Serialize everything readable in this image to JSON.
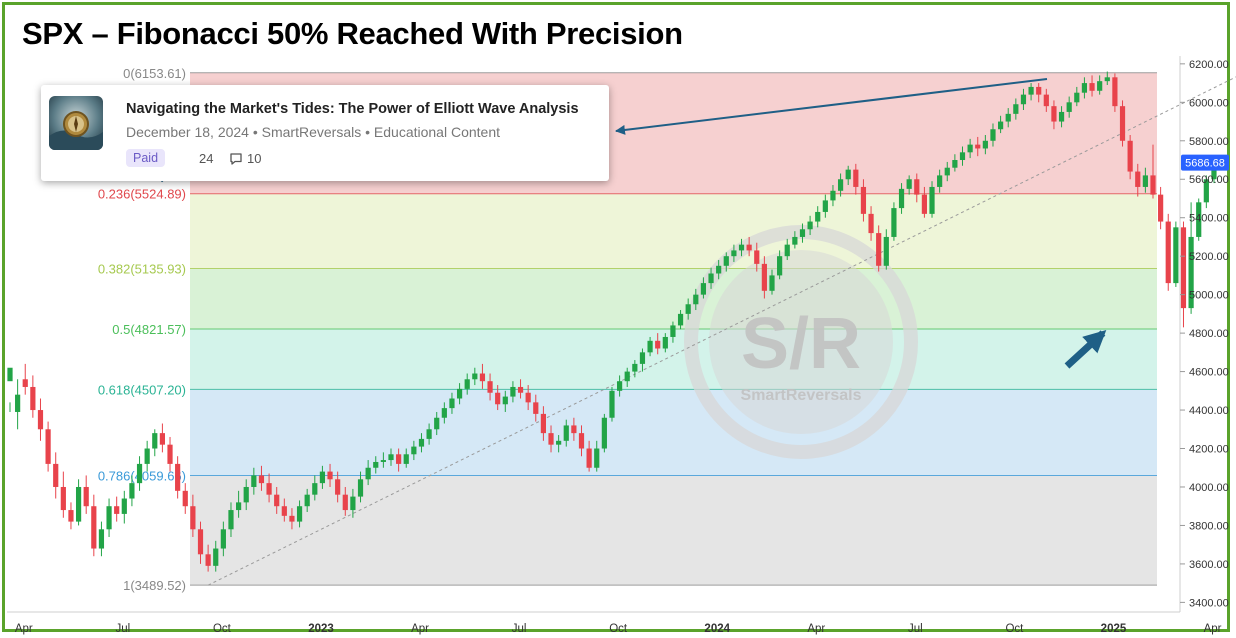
{
  "title": "SPX – Fibonacci 50% Reached With Precision",
  "card": {
    "title": "Navigating the Market's Tides: The Power of Elliott Wave Analysis",
    "meta": "December 18, 2024 • SmartReversals • Educational Content",
    "badge": "Paid",
    "likes": "24",
    "comments": "10"
  },
  "watermark": {
    "mark": "S/R",
    "text": "SmartReversals"
  },
  "colors": {
    "up": "#22a447",
    "down": "#e8434b",
    "frame": "#5aa32b",
    "arrow": "#1f5f86"
  },
  "chart_data": {
    "type": "candlestick",
    "y_axis": {
      "min": 3350,
      "max": 6220,
      "ticks": [
        "3400.00",
        "3600.00",
        "3800.00",
        "4000.00",
        "4200.00",
        "4400.00",
        "4600.00",
        "4800.00",
        "5000.00",
        "5200.00",
        "5400.00",
        "5600.00",
        "5800.00",
        "6000.00",
        "6200.00"
      ],
      "last_price": "5686.68"
    },
    "x_axis": {
      "labels": [
        {
          "t": "Apr",
          "pos": 0.5
        },
        {
          "t": "Jul",
          "pos": 13.5
        },
        {
          "t": "Oct",
          "pos": 26.5
        },
        {
          "t": "2023",
          "pos": 39.5
        },
        {
          "t": "Apr",
          "pos": 52.5
        },
        {
          "t": "Jul",
          "pos": 65.5
        },
        {
          "t": "Oct",
          "pos": 78.5
        },
        {
          "t": "2024",
          "pos": 91.5
        },
        {
          "t": "Apr",
          "pos": 104.5
        },
        {
          "t": "Jul",
          "pos": 117.5
        },
        {
          "t": "Oct",
          "pos": 130.5
        },
        {
          "t": "2025",
          "pos": 143.5
        },
        {
          "t": "Apr",
          "pos": 156.5
        }
      ]
    },
    "fib_levels": [
      {
        "label": "0(6153.61)",
        "value": 6153.61,
        "color": "#888888"
      },
      {
        "label": "0.236(5524.89)",
        "value": 5524.89,
        "color": "#e0474c"
      },
      {
        "label": "0.382(5135.93)",
        "value": 5135.93,
        "color": "#a6c94f"
      },
      {
        "label": "0.5(4821.57)",
        "value": 4821.57,
        "color": "#4bbf5a"
      },
      {
        "label": "0.618(4507.20)",
        "value": 4507.2,
        "color": "#2ab394"
      },
      {
        "label": "0.786(4059.66)",
        "value": 4059.66,
        "color": "#3a9ad8"
      },
      {
        "label": "1(3489.52)",
        "value": 3489.52,
        "color": "#888888"
      }
    ],
    "fib_zone_colors": [
      "#f6d0d0",
      "#eef5d8",
      "#d9f2d6",
      "#d3f3ea",
      "#d5e8f6",
      "#e5e5e5"
    ],
    "trend_line": {
      "from": {
        "bar": 26,
        "price": 3489.52
      },
      "to": {
        "bar": 162,
        "price": 6153.61
      }
    },
    "candles": [
      [
        4550,
        4620,
        4440,
        4390
      ],
      [
        4390,
        4480,
        4560,
        4300
      ],
      [
        4560,
        4520,
        4640,
        4480
      ],
      [
        4520,
        4400,
        4580,
        4360
      ],
      [
        4400,
        4300,
        4460,
        4240
      ],
      [
        4300,
        4120,
        4340,
        4080
      ],
      [
        4120,
        4000,
        4180,
        3940
      ],
      [
        4000,
        3880,
        4080,
        3840
      ],
      [
        3880,
        3820,
        3920,
        3780
      ],
      [
        3820,
        4000,
        4040,
        3800
      ],
      [
        4000,
        3900,
        4060,
        3860
      ],
      [
        3900,
        3680,
        3960,
        3640
      ],
      [
        3680,
        3780,
        3820,
        3640
      ],
      [
        3780,
        3900,
        3940,
        3740
      ],
      [
        3900,
        3860,
        3950,
        3820
      ],
      [
        3860,
        3940,
        3980,
        3810
      ],
      [
        3940,
        4020,
        4060,
        3900
      ],
      [
        4020,
        4120,
        4160,
        3980
      ],
      [
        4120,
        4200,
        4240,
        4080
      ],
      [
        4200,
        4280,
        4300,
        4160
      ],
      [
        4280,
        4220,
        4330,
        4180
      ],
      [
        4220,
        4120,
        4260,
        4080
      ],
      [
        4120,
        3980,
        4160,
        3940
      ],
      [
        3980,
        3900,
        4020,
        3860
      ],
      [
        3900,
        3780,
        3960,
        3740
      ],
      [
        3780,
        3650,
        3820,
        3600
      ],
      [
        3650,
        3590,
        3700,
        3560
      ],
      [
        3590,
        3680,
        3720,
        3560
      ],
      [
        3680,
        3780,
        3820,
        3640
      ],
      [
        3780,
        3880,
        3920,
        3740
      ],
      [
        3880,
        3920,
        3980,
        3840
      ],
      [
        3920,
        4000,
        4040,
        3880
      ],
      [
        4000,
        4060,
        4100,
        3960
      ],
      [
        4060,
        4020,
        4110,
        3980
      ],
      [
        4020,
        3960,
        4070,
        3920
      ],
      [
        3960,
        3900,
        4000,
        3860
      ],
      [
        3900,
        3850,
        3940,
        3820
      ],
      [
        3850,
        3820,
        3890,
        3780
      ],
      [
        3820,
        3900,
        3930,
        3790
      ],
      [
        3900,
        3960,
        3990,
        3870
      ],
      [
        3960,
        4020,
        4060,
        3930
      ],
      [
        4020,
        4080,
        4110,
        3990
      ],
      [
        4080,
        4040,
        4120,
        4000
      ],
      [
        4040,
        3960,
        4080,
        3920
      ],
      [
        3960,
        3880,
        4000,
        3850
      ],
      [
        3880,
        3950,
        3990,
        3840
      ],
      [
        3950,
        4040,
        4080,
        3920
      ],
      [
        4040,
        4100,
        4140,
        4010
      ],
      [
        4100,
        4130,
        4160,
        4070
      ],
      [
        4130,
        4140,
        4180,
        4100
      ],
      [
        4140,
        4170,
        4200,
        4110
      ],
      [
        4170,
        4120,
        4200,
        4080
      ],
      [
        4120,
        4170,
        4200,
        4100
      ],
      [
        4170,
        4210,
        4240,
        4140
      ],
      [
        4210,
        4250,
        4280,
        4180
      ],
      [
        4250,
        4300,
        4330,
        4220
      ],
      [
        4300,
        4360,
        4390,
        4270
      ],
      [
        4360,
        4410,
        4440,
        4330
      ],
      [
        4410,
        4460,
        4490,
        4380
      ],
      [
        4460,
        4510,
        4540,
        4430
      ],
      [
        4510,
        4560,
        4590,
        4480
      ],
      [
        4560,
        4590,
        4620,
        4530
      ],
      [
        4590,
        4550,
        4640,
        4510
      ],
      [
        4550,
        4490,
        4590,
        4450
      ],
      [
        4490,
        4430,
        4530,
        4400
      ],
      [
        4430,
        4470,
        4500,
        4390
      ],
      [
        4470,
        4520,
        4550,
        4440
      ],
      [
        4520,
        4490,
        4560,
        4460
      ],
      [
        4490,
        4440,
        4530,
        4400
      ],
      [
        4440,
        4380,
        4480,
        4340
      ],
      [
        4380,
        4280,
        4420,
        4240
      ],
      [
        4280,
        4220,
        4320,
        4180
      ],
      [
        4220,
        4240,
        4270,
        4180
      ],
      [
        4240,
        4320,
        4350,
        4210
      ],
      [
        4320,
        4280,
        4360,
        4240
      ],
      [
        4280,
        4200,
        4320,
        4160
      ],
      [
        4200,
        4100,
        4240,
        4080
      ],
      [
        4100,
        4200,
        4240,
        4080
      ],
      [
        4200,
        4360,
        4380,
        4180
      ],
      [
        4360,
        4500,
        4520,
        4340
      ],
      [
        4500,
        4550,
        4580,
        4470
      ],
      [
        4550,
        4600,
        4620,
        4520
      ],
      [
        4600,
        4640,
        4660,
        4570
      ],
      [
        4640,
        4700,
        4720,
        4600
      ],
      [
        4700,
        4760,
        4780,
        4680
      ],
      [
        4760,
        4720,
        4800,
        4690
      ],
      [
        4720,
        4780,
        4800,
        4700
      ],
      [
        4780,
        4840,
        4860,
        4750
      ],
      [
        4840,
        4900,
        4920,
        4820
      ],
      [
        4900,
        4950,
        4980,
        4870
      ],
      [
        4950,
        5000,
        5030,
        4920
      ],
      [
        5000,
        5060,
        5090,
        4980
      ],
      [
        5060,
        5110,
        5140,
        5030
      ],
      [
        5110,
        5150,
        5180,
        5080
      ],
      [
        5150,
        5200,
        5220,
        5120
      ],
      [
        5200,
        5230,
        5260,
        5170
      ],
      [
        5230,
        5260,
        5290,
        5200
      ],
      [
        5260,
        5230,
        5300,
        5200
      ],
      [
        5230,
        5160,
        5270,
        5120
      ],
      [
        5160,
        5020,
        5200,
        4980
      ],
      [
        5020,
        5100,
        5130,
        5000
      ],
      [
        5100,
        5200,
        5230,
        5080
      ],
      [
        5200,
        5260,
        5290,
        5180
      ],
      [
        5260,
        5300,
        5330,
        5240
      ],
      [
        5300,
        5340,
        5370,
        5270
      ],
      [
        5340,
        5380,
        5410,
        5310
      ],
      [
        5380,
        5430,
        5460,
        5350
      ],
      [
        5430,
        5490,
        5520,
        5400
      ],
      [
        5490,
        5540,
        5570,
        5460
      ],
      [
        5540,
        5600,
        5630,
        5510
      ],
      [
        5600,
        5650,
        5670,
        5570
      ],
      [
        5650,
        5560,
        5680,
        5520
      ],
      [
        5560,
        5420,
        5600,
        5380
      ],
      [
        5420,
        5320,
        5460,
        5280
      ],
      [
        5320,
        5150,
        5360,
        5120
      ],
      [
        5150,
        5300,
        5340,
        5130
      ],
      [
        5300,
        5450,
        5480,
        5280
      ],
      [
        5450,
        5550,
        5580,
        5420
      ],
      [
        5550,
        5600,
        5620,
        5520
      ],
      [
        5600,
        5520,
        5630,
        5480
      ],
      [
        5520,
        5420,
        5560,
        5400
      ],
      [
        5420,
        5560,
        5590,
        5400
      ],
      [
        5560,
        5620,
        5650,
        5530
      ],
      [
        5620,
        5660,
        5690,
        5590
      ],
      [
        5660,
        5700,
        5730,
        5640
      ],
      [
        5700,
        5740,
        5770,
        5670
      ],
      [
        5740,
        5780,
        5810,
        5710
      ],
      [
        5780,
        5760,
        5820,
        5720
      ],
      [
        5760,
        5800,
        5830,
        5730
      ],
      [
        5800,
        5860,
        5890,
        5770
      ],
      [
        5860,
        5900,
        5930,
        5840
      ],
      [
        5900,
        5940,
        5970,
        5870
      ],
      [
        5940,
        5990,
        6020,
        5910
      ],
      [
        5990,
        6040,
        6070,
        5960
      ],
      [
        6040,
        6080,
        6100,
        6010
      ],
      [
        6080,
        6040,
        6100,
        6000
      ],
      [
        6040,
        5980,
        6070,
        5950
      ],
      [
        5980,
        5900,
        6010,
        5860
      ],
      [
        5900,
        5950,
        5980,
        5870
      ],
      [
        5950,
        6000,
        6030,
        5920
      ],
      [
        6000,
        6050,
        6080,
        5980
      ],
      [
        6050,
        6100,
        6130,
        6020
      ],
      [
        6100,
        6060,
        6140,
        6030
      ],
      [
        6060,
        6110,
        6140,
        6040
      ],
      [
        6110,
        6130,
        6160,
        6090
      ],
      [
        6130,
        5980,
        6150,
        5950
      ],
      [
        5980,
        5800,
        6010,
        5770
      ],
      [
        5800,
        5640,
        5830,
        5600
      ],
      [
        5640,
        5560,
        5680,
        5510
      ],
      [
        5560,
        5620,
        5660,
        5530
      ],
      [
        5620,
        5520,
        5780,
        5500
      ],
      [
        5520,
        5380,
        5560,
        5340
      ],
      [
        5380,
        5060,
        5420,
        5020
      ],
      [
        5060,
        5350,
        5380,
        5040
      ],
      [
        5350,
        4930,
        5380,
        4830
      ],
      [
        4930,
        5300,
        5480,
        4900
      ],
      [
        5300,
        5480,
        5500,
        5280
      ],
      [
        5480,
        5600,
        5620,
        5450
      ],
      [
        5600,
        5690,
        5700,
        5580
      ]
    ]
  }
}
